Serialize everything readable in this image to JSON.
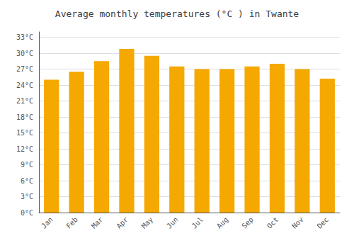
{
  "chart_data": {
    "type": "bar",
    "title": "Average monthly temperatures (°C ) in Twante",
    "categories": [
      "Jan",
      "Feb",
      "Mar",
      "Apr",
      "May",
      "Jun",
      "Jul",
      "Aug",
      "Sep",
      "Oct",
      "Nov",
      "Dec"
    ],
    "values": [
      25.0,
      26.5,
      28.5,
      30.8,
      29.5,
      27.5,
      27.0,
      27.0,
      27.5,
      28.0,
      27.0,
      25.2
    ],
    "color": "#F5A800",
    "ylim": [
      0,
      34
    ],
    "yticks": [
      {
        "value": 0,
        "label": "0°C"
      },
      {
        "value": 3,
        "label": "3°C"
      },
      {
        "value": 6,
        "label": "6°C"
      },
      {
        "value": 9,
        "label": "9°C"
      },
      {
        "value": 12,
        "label": "12°C"
      },
      {
        "value": 15,
        "label": "15°C"
      },
      {
        "value": 18,
        "label": "18°C"
      },
      {
        "value": 21,
        "label": "21°C"
      },
      {
        "value": 24,
        "label": "24°C"
      },
      {
        "value": 27,
        "label": "27°C"
      },
      {
        "value": 30,
        "label": "30°C"
      },
      {
        "value": 33,
        "label": "33°C"
      }
    ],
    "grid": true
  }
}
